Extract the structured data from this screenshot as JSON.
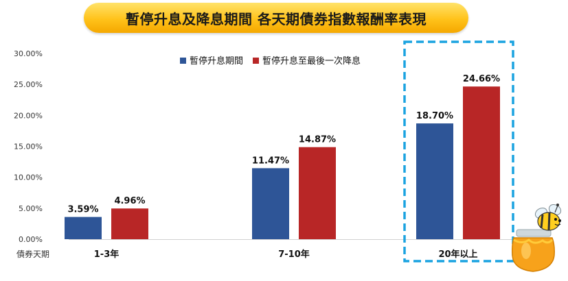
{
  "title": "暫停升息及降息期間 各天期債券指數報酬率表現",
  "chart_data": {
    "type": "bar",
    "xlabel": "債券天期",
    "categories": [
      "1-3年",
      "7-10年",
      "20年以上"
    ],
    "series": [
      {
        "name": "暫停升息期間",
        "values": [
          3.59,
          11.47,
          18.7
        ],
        "labels": [
          "3.59%",
          "11.47%",
          "18.70%"
        ],
        "color": "#2e5597"
      },
      {
        "name": "暫停升息至最後一次降息",
        "values": [
          4.96,
          14.87,
          24.66
        ],
        "labels": [
          "4.96%",
          "14.87%",
          "24.66%"
        ],
        "color": "#b82626"
      }
    ],
    "yticks": [
      "0.00%",
      "5.00%",
      "10.00%",
      "15.00%",
      "20.00%",
      "25.00%",
      "30.00%"
    ],
    "ylim": [
      0,
      30
    ],
    "grid": false,
    "legend": "top-center",
    "highlight": {
      "category": "20年以上",
      "color": "#1ba3e0",
      "style": "dashed"
    }
  }
}
